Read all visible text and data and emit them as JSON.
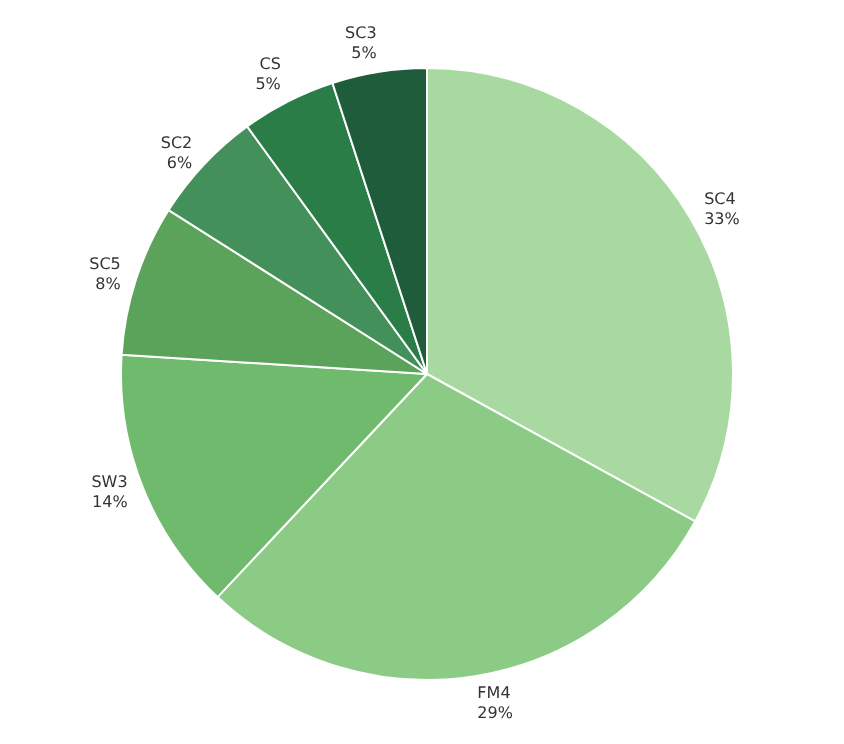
{
  "chart_data": {
    "type": "pie",
    "categories": [
      "SC4",
      "FM4",
      "SW3",
      "SC5",
      "SC2",
      "CS",
      "SC3"
    ],
    "values": [
      33,
      29,
      14,
      8,
      6,
      5,
      5
    ],
    "value_labels": [
      "33%",
      "29%",
      "14%",
      "8%",
      "6%",
      "5%",
      "5%"
    ],
    "colors": [
      "#a8d9a0",
      "#8ccb86",
      "#6fba6c",
      "#5ba25a",
      "#44905a",
      "#2b7d47",
      "#1f5c3c"
    ],
    "legend": false
  }
}
